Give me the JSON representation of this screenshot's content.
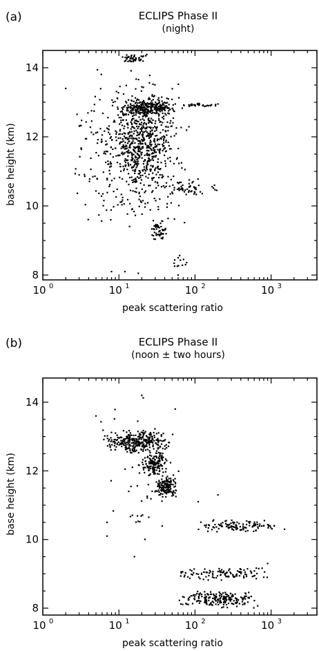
{
  "panels": [
    {
      "label": "(a)",
      "title": "ECLIPS Phase II",
      "subtitle": "(night)",
      "xlabel": "peak scattering ratio",
      "ylabel": "base height (km)"
    },
    {
      "label": "(b)",
      "title": "ECLIPS Phase II",
      "subtitle": "(noon ± two hours)",
      "xlabel": "peak scattering ratio",
      "ylabel": "base height (km)"
    }
  ],
  "chart_data": [
    {
      "type": "scatter",
      "title": "ECLIPS Phase II",
      "subtitle": "(night)",
      "xlabel": "peak scattering ratio",
      "ylabel": "base height (km)",
      "xscale": "log",
      "xlim": [
        1,
        4000
      ],
      "ylim": [
        7.8,
        14.5
      ],
      "xticks": [
        1,
        10,
        100,
        1000
      ],
      "xtick_labels": [
        {
          "base": "10",
          "exp": "0"
        },
        {
          "base": "10",
          "exp": "1"
        },
        {
          "base": "10",
          "exp": "2"
        },
        {
          "base": "10",
          "exp": "3"
        }
      ],
      "yticks": [
        8,
        10,
        12,
        14
      ],
      "ytick_labels": [
        "8",
        "10",
        "12",
        "14"
      ],
      "grid": false,
      "clusters": [
        {
          "x_range": [
            2.5,
            100
          ],
          "y_range": [
            9.3,
            14.0
          ],
          "count": 480
        },
        {
          "x_range": [
            8,
            60
          ],
          "y_range": [
            10.4,
            13.4
          ],
          "count": 420
        },
        {
          "x_range": [
            10,
            60
          ],
          "y_range": [
            12.6,
            13.1
          ],
          "count": 220
        },
        {
          "x_range": [
            60,
            200
          ],
          "y_range": [
            12.85,
            12.98
          ],
          "count": 30
        },
        {
          "x_range": [
            10,
            25
          ],
          "y_range": [
            14.1,
            14.45
          ],
          "count": 50
        },
        {
          "x_range": [
            25,
            45
          ],
          "y_range": [
            9.0,
            9.6
          ],
          "count": 50
        },
        {
          "x_range": [
            30,
            200
          ],
          "y_range": [
            10.3,
            10.8
          ],
          "count": 50
        },
        {
          "x_range": [
            50,
            80
          ],
          "y_range": [
            7.9,
            8.7
          ],
          "count": 10
        }
      ],
      "points": [
        [
          2,
          13.4
        ],
        [
          3,
          10.9
        ],
        [
          8,
          8.1
        ],
        [
          12,
          8.1
        ],
        [
          60,
          8.0
        ],
        [
          75,
          8.3
        ],
        [
          18,
          8.05
        ],
        [
          60,
          8.5
        ],
        [
          180,
          10.6
        ],
        [
          200,
          12.95
        ],
        [
          150,
          12.9
        ],
        [
          100,
          10.5
        ]
      ]
    },
    {
      "type": "scatter",
      "title": "ECLIPS Phase II",
      "subtitle": "(noon ± two hours)",
      "xlabel": "peak scattering ratio",
      "ylabel": "base height (km)",
      "xscale": "log",
      "xlim": [
        1,
        4000
      ],
      "ylim": [
        7.8,
        14.5
      ],
      "xticks": [
        1,
        10,
        100,
        1000
      ],
      "xtick_labels": [
        {
          "base": "10",
          "exp": "0"
        },
        {
          "base": "10",
          "exp": "1"
        },
        {
          "base": "10",
          "exp": "2"
        },
        {
          "base": "10",
          "exp": "3"
        }
      ],
      "yticks": [
        8,
        10,
        12,
        14
      ],
      "ytick_labels": [
        "8",
        "10",
        "12",
        "14"
      ],
      "grid": false,
      "clusters": [
        {
          "x_range": [
            6,
            50
          ],
          "y_range": [
            12.5,
            13.2
          ],
          "count": 300
        },
        {
          "x_range": [
            20,
            45
          ],
          "y_range": [
            11.8,
            12.6
          ],
          "count": 150
        },
        {
          "x_range": [
            30,
            60
          ],
          "y_range": [
            11.2,
            11.9
          ],
          "count": 130
        },
        {
          "x_range": [
            90,
            1500
          ],
          "y_range": [
            10.2,
            10.6
          ],
          "count": 110
        },
        {
          "x_range": [
            50,
            1000
          ],
          "y_range": [
            8.8,
            9.2
          ],
          "count": 110
        },
        {
          "x_range": [
            60,
            700
          ],
          "y_range": [
            8.0,
            8.5
          ],
          "count": 200
        },
        {
          "x_range": [
            5,
            80
          ],
          "y_range": [
            9.4,
            14.3
          ],
          "count": 60
        }
      ],
      "points": [
        [
          5,
          13.6
        ],
        [
          7,
          10.1
        ],
        [
          7,
          10.5
        ],
        [
          55,
          13.8
        ],
        [
          20,
          14.2
        ],
        [
          1100,
          10.4
        ],
        [
          1500,
          10.3
        ],
        [
          900,
          9.3
        ],
        [
          800,
          8.9
        ],
        [
          110,
          11.1
        ],
        [
          200,
          11.3
        ],
        [
          16,
          9.5
        ]
      ]
    }
  ]
}
